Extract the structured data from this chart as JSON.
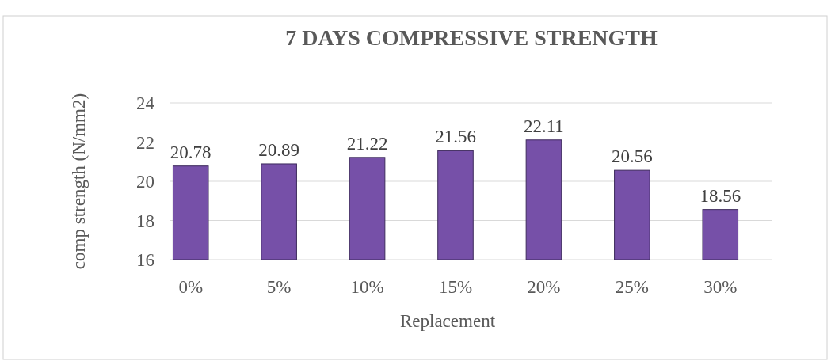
{
  "chart_data": {
    "type": "bar",
    "title": "7 DAYS COMPRESSIVE STRENGTH",
    "xlabel": "Replacement",
    "ylabel": "comp strength (N/mm2)",
    "categories": [
      "0%",
      "5%",
      "10%",
      "15%",
      "20%",
      "25%",
      "30%"
    ],
    "values": [
      20.78,
      20.89,
      21.22,
      21.56,
      22.11,
      20.56,
      18.56
    ],
    "color": "#7650a8",
    "ylim": [
      16,
      24
    ],
    "yticks": [
      16,
      18,
      20,
      22,
      24
    ],
    "grid": "y",
    "data_labels": true
  }
}
